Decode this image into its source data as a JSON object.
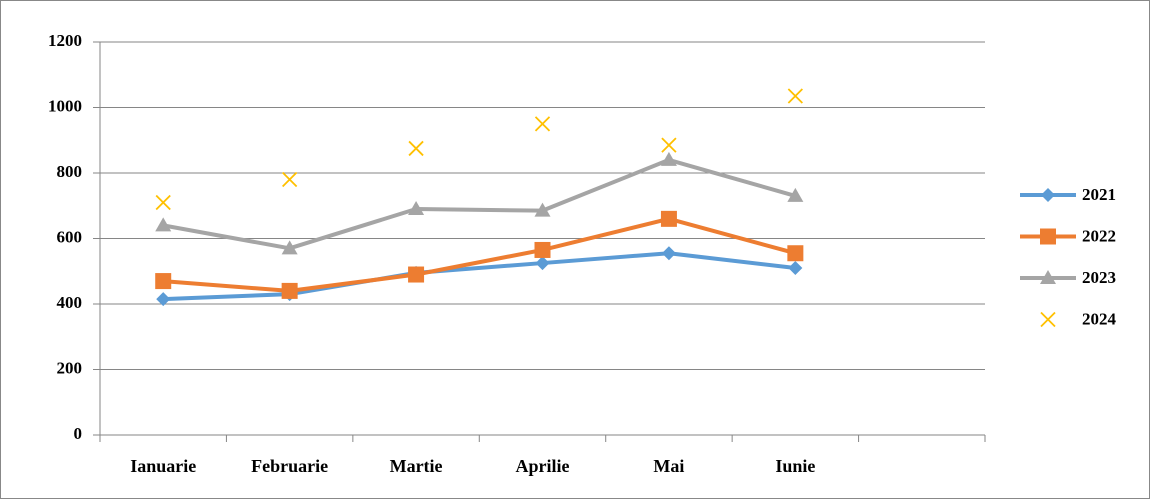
{
  "chart_data": {
    "type": "line",
    "categories": [
      "Ianuarie",
      "Februarie",
      "Martie",
      "Aprilie",
      "Mai",
      "Iunie",
      null
    ],
    "series": [
      {
        "name": "2021",
        "color": "#5b9bd5",
        "marker": "diamond",
        "line": true,
        "values": [
          415,
          430,
          495,
          525,
          555,
          510,
          null
        ]
      },
      {
        "name": "2022",
        "color": "#ed7d31",
        "marker": "square",
        "line": true,
        "values": [
          470,
          440,
          490,
          565,
          660,
          555,
          null
        ]
      },
      {
        "name": "2023",
        "color": "#a5a5a5",
        "marker": "triangle",
        "line": true,
        "values": [
          640,
          570,
          690,
          685,
          840,
          730,
          null
        ]
      },
      {
        "name": "2024",
        "color": "#ffc000",
        "marker": "x",
        "line": false,
        "values": [
          710,
          780,
          875,
          950,
          885,
          1035,
          null
        ]
      }
    ],
    "ylim": [
      0,
      1200
    ],
    "yticks": [
      0,
      200,
      400,
      600,
      800,
      1000,
      1200
    ],
    "grid": true,
    "legend": "right"
  }
}
